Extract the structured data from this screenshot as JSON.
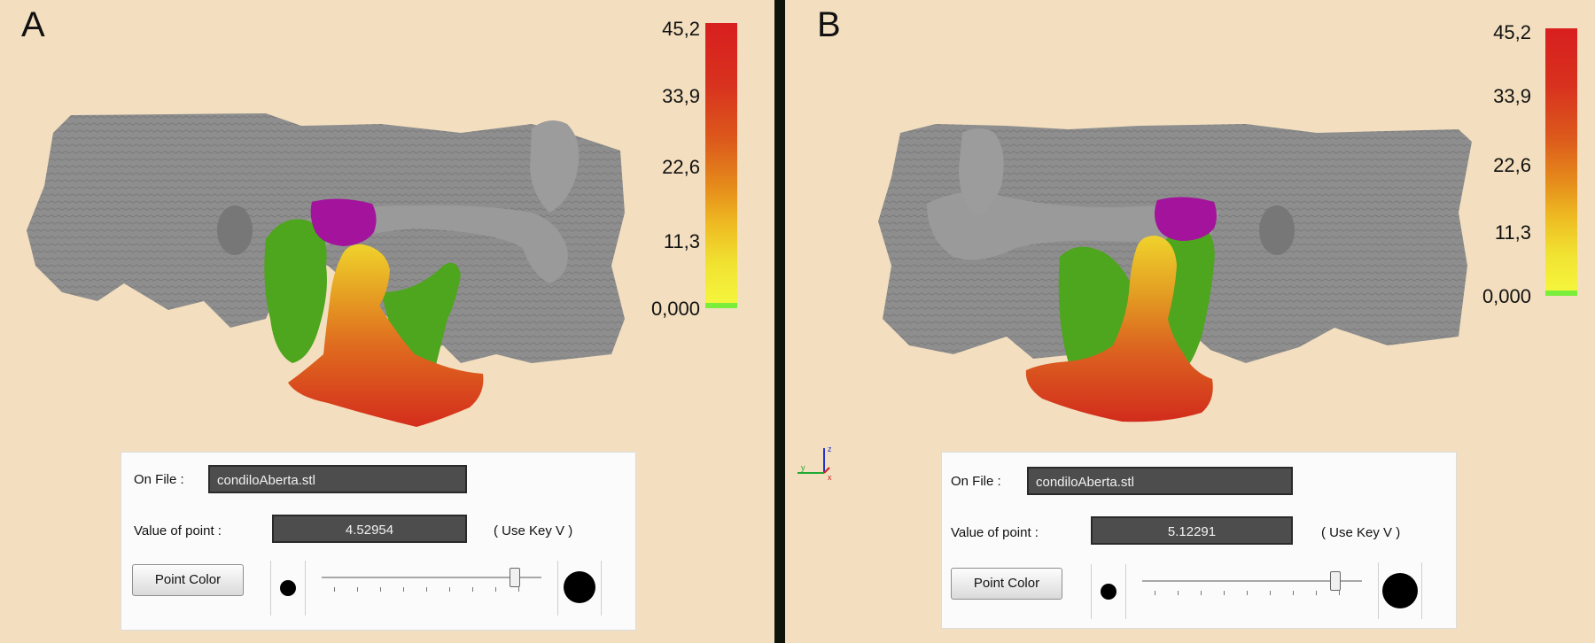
{
  "panels": [
    {
      "letter": "A",
      "scale": {
        "ticks": [
          "45,2",
          "33,9",
          "22,6",
          "11,3",
          "0,000"
        ]
      },
      "info": {
        "on_file_label": "On File :",
        "file_value": "condiloAberta.stl",
        "value_label": "Value of point :",
        "value": "4.52954",
        "hint": "( Use Key V )",
        "point_color_button": "Point Color",
        "slider_value": 0.88
      }
    },
    {
      "letter": "B",
      "scale": {
        "ticks": [
          "45,2",
          "33,9",
          "22,6",
          "11,3",
          "0,000"
        ]
      },
      "info": {
        "on_file_label": "On File :",
        "file_value": "condiloAberta.stl",
        "value_label": "Value of point :",
        "value": "5.12291",
        "hint": "( Use Key V )",
        "point_color_button": "Point Color",
        "slider_value": 0.88
      }
    }
  ],
  "axes": {
    "z": "z",
    "y": "y",
    "x": "x"
  },
  "colors": {
    "background": "#f3dfbf",
    "bone": "#8d8d8d",
    "disc": "#a3139b",
    "condyle_green": "#4ea51e",
    "scale_high": "#d81f1f",
    "scale_low": "#f5f53d",
    "scale_zero": "#7bee3c"
  },
  "icons": [
    "axis-triad-icon",
    "small-point-icon",
    "large-point-icon"
  ]
}
